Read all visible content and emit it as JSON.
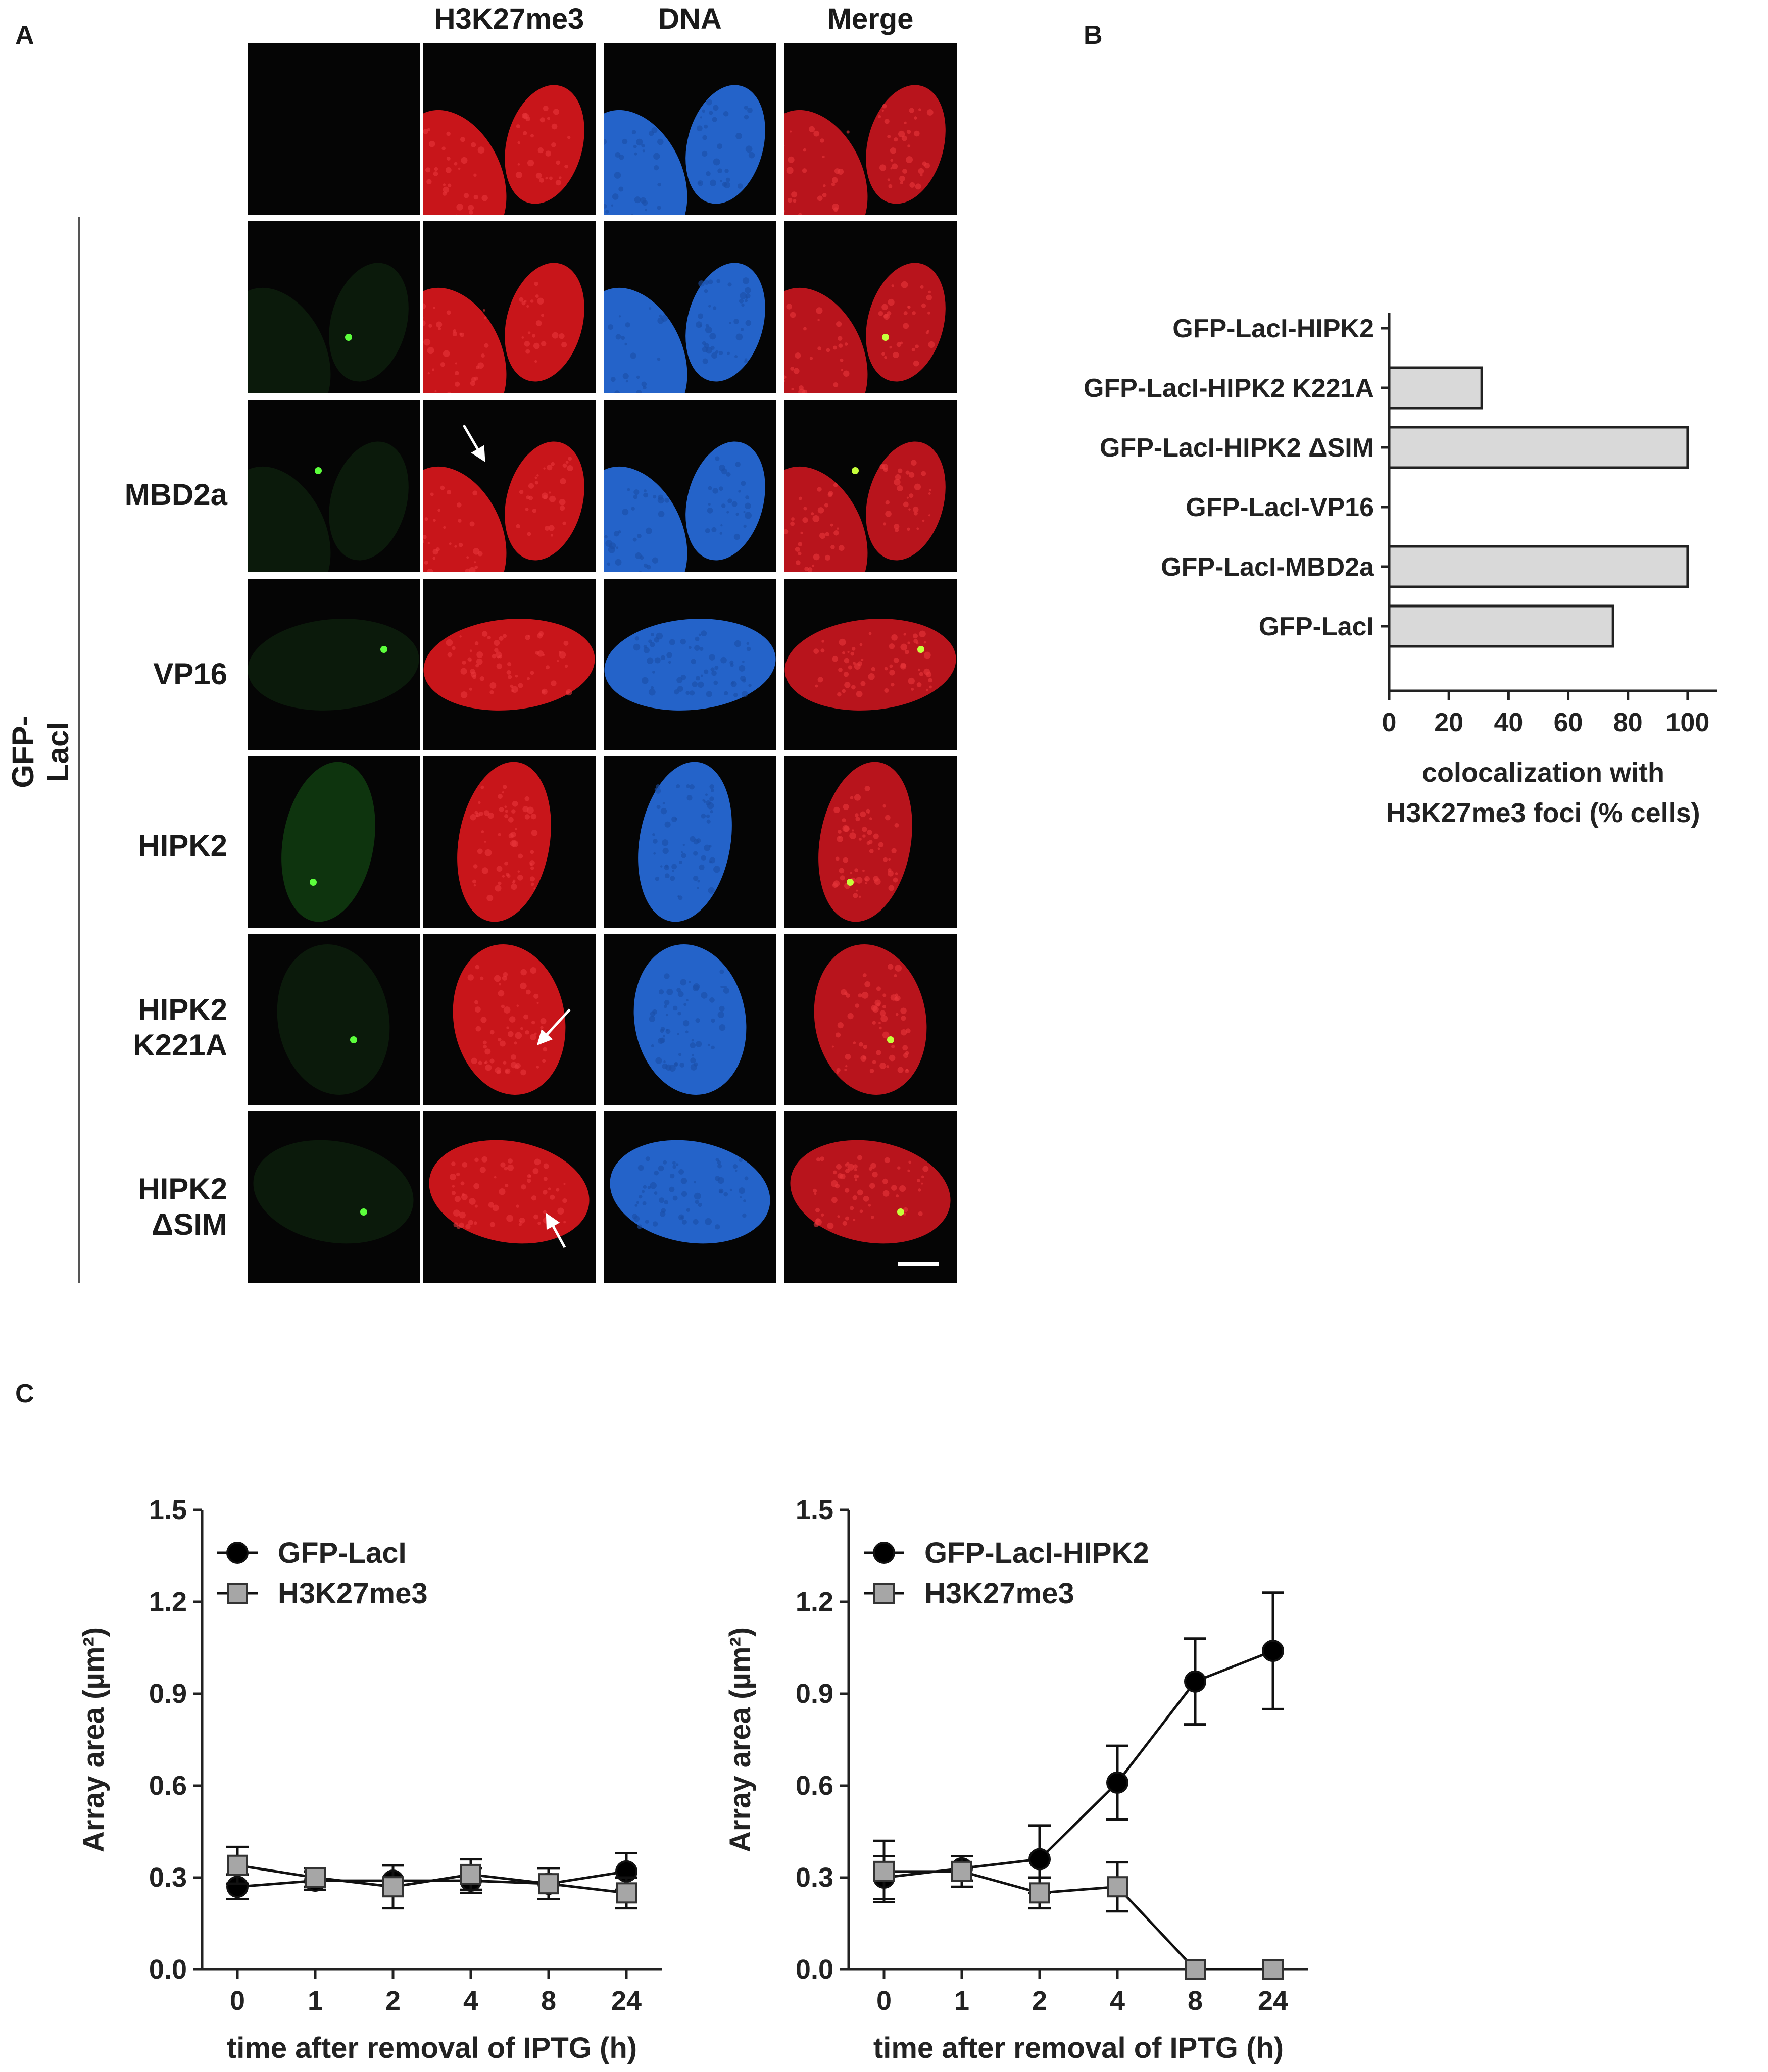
{
  "panelA": {
    "letter": "A",
    "col_headers": [
      "H3K27me3",
      "DNA",
      "Merge"
    ],
    "group_label": "GFP-LacI",
    "rows": [
      {
        "label": ""
      },
      {
        "label": ""
      },
      {
        "label": "MBD2a"
      },
      {
        "label": "VP16"
      },
      {
        "label": "HIPK2"
      },
      {
        "label": "HIPK2\nK221A"
      },
      {
        "label": "HIPK2\nΔSIM"
      }
    ]
  },
  "panelB": {
    "letter": "B",
    "chart_data": {
      "type": "bar",
      "orientation": "horizontal",
      "categories": [
        "GFP-LacI-HIPK2",
        "GFP-LacI-HIPK2  K221A",
        "GFP-LacI-HIPK2  ΔSIM",
        "GFP-LacI-VP16",
        "GFP-LacI-MBD2a",
        "GFP-LacI"
      ],
      "values": [
        0,
        31,
        100,
        0,
        100,
        75
      ],
      "xlim": [
        0,
        110
      ],
      "xticks": [
        0,
        20,
        40,
        60,
        80,
        100
      ],
      "xlabel_line1": "colocalization  with",
      "xlabel_line2": "H3K27me3  foci  (% cells)",
      "bar_color": "#d9d9d9"
    }
  },
  "panelC": {
    "letter": "C",
    "chart_data": [
      {
        "type": "line",
        "categories": [
          "0",
          "1",
          "2",
          "4",
          "8",
          "24"
        ],
        "ylim": [
          0,
          1.5
        ],
        "yticks": [
          "0.0",
          "0.3",
          "0.6",
          "0.9",
          "1.2",
          "1.5"
        ],
        "ylabel": "Array area (µm²)",
        "xlabel": "time after removal of IPTG (h)",
        "series": [
          {
            "name": "GFP-LacI",
            "marker": "circle",
            "color": "#000000",
            "values": [
              0.27,
              0.29,
              0.29,
              0.29,
              0.28,
              0.32
            ],
            "errors": [
              0.04,
              0.03,
              0.05,
              0.04,
              0.05,
              0.06
            ]
          },
          {
            "name": "H3K27me3",
            "marker": "square",
            "color": "#a6a6a6",
            "values": [
              0.34,
              0.3,
              0.27,
              0.31,
              0.28,
              0.25
            ],
            "errors": [
              0.06,
              0.03,
              0.07,
              0.05,
              0.05,
              0.05
            ]
          }
        ]
      },
      {
        "type": "line",
        "categories": [
          "0",
          "1",
          "2",
          "4",
          "8",
          "24"
        ],
        "ylim": [
          0,
          1.5
        ],
        "yticks": [
          "0.0",
          "0.3",
          "0.6",
          "0.9",
          "1.2",
          "1.5"
        ],
        "ylabel": "Array area (µm²)",
        "xlabel": "time after removal of IPTG (h)",
        "series": [
          {
            "name": "GFP-LacI-HIPK2",
            "marker": "circle",
            "color": "#000000",
            "values": [
              0.3,
              0.33,
              0.36,
              0.61,
              0.94,
              1.04
            ],
            "errors": [
              0.07,
              0.04,
              0.11,
              0.12,
              0.14,
              0.19
            ]
          },
          {
            "name": "H3K27me3",
            "marker": "square",
            "color": "#a6a6a6",
            "values": [
              0.32,
              0.32,
              0.25,
              0.27,
              0.0,
              0.0
            ],
            "errors": [
              0.1,
              0.05,
              0.05,
              0.08,
              0.0,
              0.0
            ]
          }
        ]
      }
    ]
  }
}
